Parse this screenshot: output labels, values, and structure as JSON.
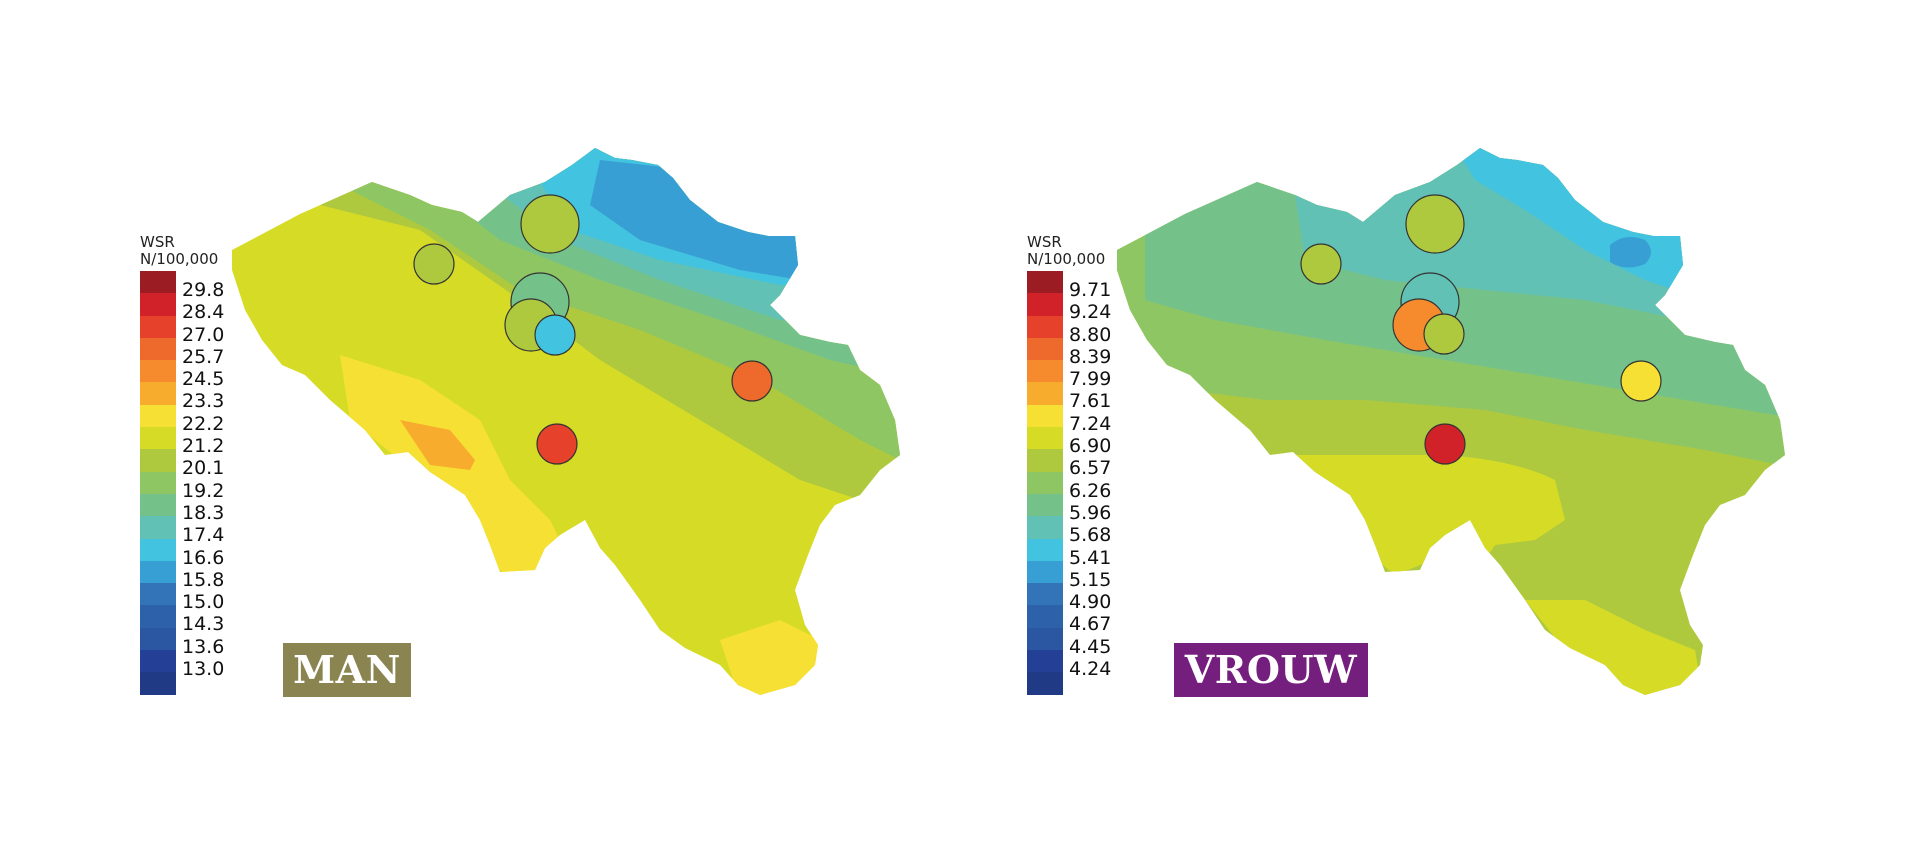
{
  "colors": {
    "scale": [
      "#9b1c22",
      "#d12229",
      "#e5412b",
      "#ee6a2c",
      "#f58b2c",
      "#f8ac2e",
      "#f6e033",
      "#d6db26",
      "#afc93f",
      "#8fc664",
      "#74c28a",
      "#62c1b5",
      "#42c3df",
      "#389fd5",
      "#3374b8",
      "#2d61aa",
      "#2a56a2",
      "#233f96",
      "#213a85"
    ],
    "man_badge": "#8a8550",
    "vrouw_badge": "#741f7d",
    "circle_stroke": "#333333"
  },
  "panels": {
    "man": {
      "legend_title_line1": "WSR",
      "legend_title_line2": "N/100,000",
      "legend_values": [
        "29.8",
        "28.4",
        "27.0",
        "25.7",
        "24.5",
        "23.3",
        "22.2",
        "21.2",
        "20.1",
        "19.2",
        "18.3",
        "17.4",
        "16.6",
        "15.8",
        "15.0",
        "14.3",
        "13.6",
        "13.0"
      ],
      "badge_label": "MAN"
    },
    "vrouw": {
      "legend_title_line1": "WSR",
      "legend_title_line2": "N/100,000",
      "legend_values": [
        "9.71",
        "9.24",
        "8.80",
        "8.39",
        "7.99",
        "7.61",
        "7.24",
        "6.90",
        "6.57",
        "6.26",
        "5.96",
        "5.68",
        "5.41",
        "5.15",
        "4.90",
        "4.67",
        "4.45",
        "4.24"
      ],
      "badge_label": "VROUW"
    }
  }
}
